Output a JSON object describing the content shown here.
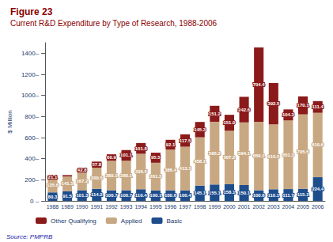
{
  "chart_data": {
    "type": "bar",
    "title": "Figure 23",
    "subtitle": "Current R&D Expenditure by Type of Research, 1988-2006",
    "ylabel": "$ Million",
    "annotations": [
      "Source: PMPRB"
    ],
    "categories": [
      "1988",
      "1989",
      "1990",
      "1991",
      "1992",
      "1993",
      "1994",
      "1995",
      "1996",
      "1997",
      "1998",
      "1999",
      "2000",
      "2001",
      "2002",
      "2003",
      "2004",
      "2005",
      "2006"
    ],
    "series": [
      {
        "name": "Basic",
        "color": "#1e4d8c",
        "values": [
          80.3,
          91.5,
          101.3,
          114.2,
          100.7,
          100.7,
          110.4,
          100.1,
          100.6,
          100.4,
          145.1,
          155.1,
          158.1,
          150.1,
          100.6,
          110.1,
          111.7,
          115.1,
          224.4
        ]
      },
      {
        "name": "Applied",
        "color": "#c8a882",
        "values": [
          135.6,
          141.1,
          167.2,
          200.5,
          280.1,
          280.1,
          336.5,
          261.3,
          386.4,
          413.3,
          458.1,
          595.2,
          507.2,
          594.1,
          650.1,
          615.5,
          651.3,
          705.5,
          610.6
        ]
      },
      {
        "name": "Other Qualifying",
        "color": "#8b1a1a",
        "values": [
          21.1,
          11.8,
          42.8,
          57.8,
          60.9,
          101.1,
          101.8,
          95.5,
          92.1,
          117.5,
          145.3,
          151.2,
          151.0,
          242.6,
          704.4,
          392.5,
          104.3,
          170.1,
          111.4
        ],
        "value_labels": [
          "21.1",
          null,
          "42.8",
          "57.8",
          "60.9",
          "101.1",
          "101.8",
          "95.5",
          "92.1",
          "117.5",
          "145.3",
          "151.2",
          "151.0",
          "242.6",
          "704.4",
          "392.5",
          "104.3",
          "170.1",
          "111.4"
        ]
      }
    ],
    "stacked": true,
    "data_labels": true,
    "ylim": [
      0,
      1500
    ],
    "yticks": [
      {
        "value": 0,
        "label": "0 –"
      },
      {
        "value": 200,
        "label": "200–"
      },
      {
        "value": 400,
        "label": "400–"
      },
      {
        "value": 600,
        "label": "600–"
      },
      {
        "value": 800,
        "label": "800–"
      },
      {
        "value": 1000,
        "label": "1000–"
      },
      {
        "value": 1200,
        "label": "1200–"
      },
      {
        "value": 1400,
        "label": "1400–"
      }
    ],
    "grid": false,
    "legend": "lower left"
  }
}
